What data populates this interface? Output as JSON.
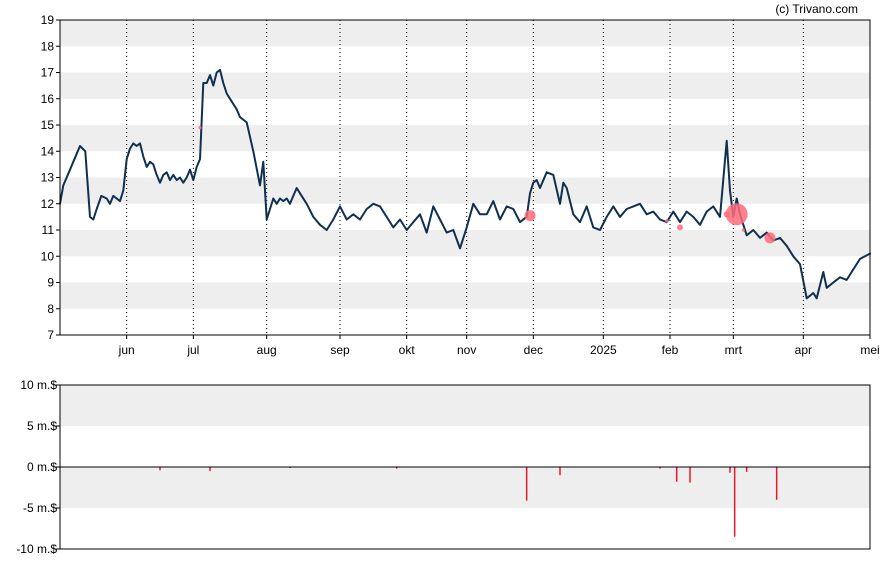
{
  "credit": "(c) Trivano.com",
  "colors": {
    "price_line": "#0f3050",
    "marker": "#ff6b7a",
    "bar": "#e8192c",
    "band": "#eeeeee",
    "axis": "#000000"
  },
  "chart_data": [
    {
      "type": "line",
      "title": "",
      "xlabel": "",
      "ylabel": "",
      "ylim": [
        7,
        19
      ],
      "yticks": [
        "7",
        "8",
        "9",
        "10",
        "11",
        "12",
        "13",
        "14",
        "15",
        "16",
        "17",
        "18",
        "19"
      ],
      "xticks": [
        {
          "label": "jun",
          "pos": 1.0
        },
        {
          "label": "jul",
          "pos": 2.0
        },
        {
          "label": "aug",
          "pos": 3.1
        },
        {
          "label": "sep",
          "pos": 4.2
        },
        {
          "label": "okt",
          "pos": 5.2
        },
        {
          "label": "nov",
          "pos": 6.1
        },
        {
          "label": "dec",
          "pos": 7.1
        },
        {
          "label": "2025",
          "pos": 8.15
        },
        {
          "label": "feb",
          "pos": 9.15
        },
        {
          "label": "mrt",
          "pos": 10.1
        },
        {
          "label": "apr",
          "pos": 11.15
        },
        {
          "label": "mei",
          "pos": 12.15
        }
      ],
      "xlim": [
        0,
        12.15
      ],
      "grid": "vertical dotted at month ticks, alternating horizontal bands",
      "series": [
        {
          "x": [
            0,
            0.05,
            0.1,
            0.2,
            0.3,
            0.38,
            0.45,
            0.5,
            0.55,
            0.62,
            0.7,
            0.75,
            0.8,
            0.85,
            0.9,
            0.95,
            1.0,
            1.05,
            1.1,
            1.15,
            1.2,
            1.25,
            1.3,
            1.35,
            1.4,
            1.45,
            1.5,
            1.55,
            1.6,
            1.65,
            1.7,
            1.75,
            1.8,
            1.85,
            1.9,
            1.95,
            2.0,
            2.05,
            2.1,
            2.15,
            2.2,
            2.25,
            2.3,
            2.35,
            2.4,
            2.45,
            2.5,
            2.55,
            2.6,
            2.65,
            2.7,
            2.8,
            2.9,
            3.0,
            3.05,
            3.1,
            3.2,
            3.25,
            3.3,
            3.35,
            3.4,
            3.45,
            3.5,
            3.55,
            3.6,
            3.7,
            3.8,
            3.9,
            4.0,
            4.1,
            4.2,
            4.3,
            4.4,
            4.5,
            4.6,
            4.7,
            4.8,
            4.9,
            5.0,
            5.1,
            5.2,
            5.3,
            5.4,
            5.5,
            5.6,
            5.7,
            5.8,
            5.9,
            6.0,
            6.1,
            6.2,
            6.3,
            6.4,
            6.5,
            6.6,
            6.7,
            6.8,
            6.9,
            7.0,
            7.05,
            7.1,
            7.15,
            7.2,
            7.3,
            7.4,
            7.5,
            7.55,
            7.6,
            7.7,
            7.8,
            7.9,
            8.0,
            8.1,
            8.2,
            8.3,
            8.4,
            8.5,
            8.6,
            8.7,
            8.8,
            8.9,
            9.0,
            9.1,
            9.2,
            9.3,
            9.4,
            9.5,
            9.6,
            9.7,
            9.8,
            9.9,
            10.0,
            10.05,
            10.1,
            10.15,
            10.2,
            10.3,
            10.4,
            10.5,
            10.6,
            10.7,
            10.8,
            10.9,
            11.0,
            11.1,
            11.2,
            11.3,
            11.35,
            11.4,
            11.45,
            11.5,
            11.6,
            11.7,
            11.8,
            11.9,
            12.0,
            12.15
          ],
          "y": [
            12.0,
            12.7,
            13.0,
            13.6,
            14.2,
            14.0,
            11.5,
            11.4,
            11.8,
            12.3,
            12.2,
            12.0,
            12.3,
            12.2,
            12.1,
            12.5,
            13.7,
            14.1,
            14.3,
            14.2,
            14.3,
            13.8,
            13.4,
            13.6,
            13.5,
            13.1,
            12.8,
            13.1,
            13.2,
            12.9,
            13.1,
            12.9,
            13.0,
            12.8,
            13.0,
            13.3,
            12.9,
            13.4,
            13.7,
            16.6,
            16.6,
            16.9,
            16.5,
            17.0,
            17.1,
            16.6,
            16.2,
            16.0,
            15.8,
            15.6,
            15.3,
            15.1,
            14.0,
            12.7,
            13.6,
            11.4,
            12.2,
            12.0,
            12.2,
            12.1,
            12.2,
            12.0,
            12.3,
            12.6,
            12.4,
            12.0,
            11.5,
            11.2,
            11.0,
            11.4,
            11.9,
            11.4,
            11.6,
            11.4,
            11.8,
            12.0,
            11.9,
            11.5,
            11.1,
            11.4,
            11.0,
            11.3,
            11.6,
            10.9,
            11.9,
            11.4,
            10.9,
            11.0,
            10.3,
            11.1,
            12.0,
            11.6,
            11.6,
            12.1,
            11.4,
            11.9,
            11.8,
            11.3,
            11.5,
            12.4,
            12.8,
            12.9,
            12.6,
            13.2,
            13.1,
            12.0,
            12.8,
            12.6,
            11.6,
            11.3,
            11.9,
            11.1,
            11.0,
            11.5,
            11.9,
            11.5,
            11.8,
            11.9,
            12.0,
            11.6,
            11.7,
            11.4,
            11.3,
            11.7,
            11.3,
            11.7,
            11.5,
            11.2,
            11.7,
            11.9,
            11.5,
            14.4,
            12.5,
            11.5,
            12.2,
            11.6,
            10.8,
            11.0,
            10.7,
            10.9,
            10.6,
            10.7,
            10.4,
            10.0,
            9.7,
            8.4,
            8.6,
            8.4,
            8.9,
            9.4,
            8.8,
            9.0,
            9.2,
            9.1,
            9.5,
            9.9,
            10.1
          ]
        }
      ],
      "markers": [
        {
          "x": 2.1,
          "y": 14.9,
          "size": "tiny"
        },
        {
          "x": 7.05,
          "y": 11.55,
          "size": "medium"
        },
        {
          "x": 9.1,
          "y": 11.35,
          "size": "tiny"
        },
        {
          "x": 9.3,
          "y": 11.1,
          "size": "small"
        },
        {
          "x": 10.0,
          "y": 11.6,
          "size": "small"
        },
        {
          "x": 10.15,
          "y": 11.6,
          "size": "large"
        },
        {
          "x": 10.25,
          "y": 11.0,
          "size": "tiny"
        },
        {
          "x": 10.65,
          "y": 10.7,
          "size": "medium"
        }
      ]
    },
    {
      "type": "bar",
      "title": "",
      "xlabel": "",
      "ylabel": "",
      "ylim": [
        -10,
        10
      ],
      "yticks": [
        "10 m.$",
        "5 m.$",
        "0 m.$",
        "-5 m.$",
        "-10 m.$"
      ],
      "xlim": [
        0,
        12.15
      ],
      "bars": [
        {
          "x": 1.5,
          "value": -0.4
        },
        {
          "x": 2.25,
          "value": -0.5
        },
        {
          "x": 3.45,
          "value": -0.1
        },
        {
          "x": 5.05,
          "value": -0.2
        },
        {
          "x": 7.0,
          "value": -4.1
        },
        {
          "x": 7.5,
          "value": -1.0
        },
        {
          "x": 9.0,
          "value": -0.2
        },
        {
          "x": 9.25,
          "value": -1.8
        },
        {
          "x": 9.45,
          "value": -1.9
        },
        {
          "x": 10.05,
          "value": -0.7
        },
        {
          "x": 10.12,
          "value": -8.5
        },
        {
          "x": 10.3,
          "value": -0.6
        },
        {
          "x": 10.75,
          "value": -4.0
        }
      ]
    }
  ]
}
